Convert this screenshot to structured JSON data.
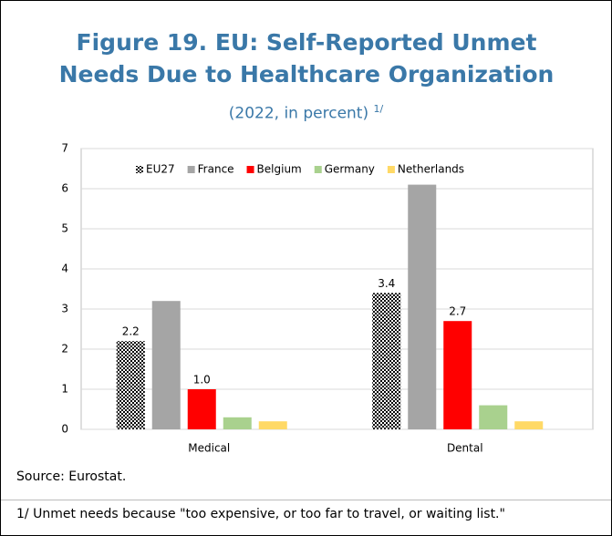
{
  "chart_data": {
    "type": "bar",
    "title": "Figure 19. EU: Self-Reported Unmet Needs Due to Healthcare Organization",
    "subtitle": "(2022, in percent)",
    "subtitle_note": "1/",
    "categories": [
      "Medical",
      "Dental"
    ],
    "series": [
      {
        "name": "EU27",
        "color": "#3a66c8",
        "pattern": "checker",
        "values": [
          2.2,
          3.4
        ],
        "value_labels": [
          "2.2",
          "3.4"
        ]
      },
      {
        "name": "France",
        "color": "#a5a5a5",
        "values": [
          3.2,
          6.1
        ]
      },
      {
        "name": "Belgium",
        "color": "#ff0000",
        "values": [
          1.0,
          2.7
        ],
        "value_labels": [
          "1.0",
          "2.7"
        ]
      },
      {
        "name": "Germany",
        "color": "#a9d18e",
        "values": [
          0.3,
          0.6
        ]
      },
      {
        "name": "Netherlands",
        "color": "#ffd966",
        "values": [
          0.2,
          0.2
        ]
      }
    ],
    "ylim": [
      0,
      7
    ],
    "yticks": [
      0,
      1,
      2,
      3,
      4,
      5,
      6,
      7
    ],
    "grid": true,
    "legend": "top",
    "source": "Source: Eurostat.",
    "note": "1/ Unmet needs because \"too expensive, or too far to travel, or waiting list.\""
  }
}
